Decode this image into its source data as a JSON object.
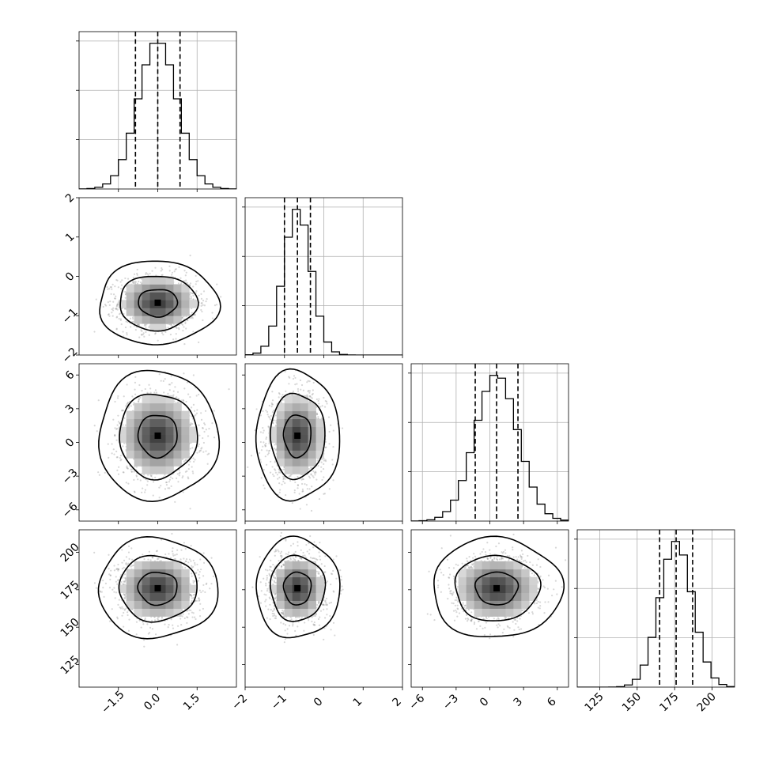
{
  "chart_data": {
    "type": "corner",
    "params": [
      {
        "range": [
          -3,
          3
        ],
        "ticks": [
          -1.5,
          0.0,
          1.5
        ],
        "tick_labels": [
          "−1.5",
          "0.0",
          "1.5"
        ],
        "mean": 0.0,
        "sd": 0.75,
        "quantiles": [
          -0.85,
          0.0,
          0.85
        ]
      },
      {
        "range": [
          -2,
          2
        ],
        "ticks": [
          -2,
          -1,
          0,
          1,
          2
        ],
        "tick_labels": [
          "−2",
          "−1",
          "0",
          "1",
          "2"
        ],
        "mean": -0.67,
        "sd": 0.35,
        "quantiles": [
          -1.0,
          -0.67,
          -0.34
        ]
      },
      {
        "range": [
          -7,
          7
        ],
        "ticks": [
          -6,
          -3,
          0,
          3,
          6
        ],
        "tick_labels": [
          "−6",
          "−3",
          "0",
          "3",
          "6"
        ],
        "mean": 0.6,
        "sd": 1.9,
        "quantiles": [
          -1.3,
          0.6,
          2.5
        ]
      },
      {
        "range": [
          110,
          215
        ],
        "ticks": [
          125,
          150,
          175,
          200
        ],
        "tick_labels": [
          "125",
          "150",
          "175",
          "200"
        ],
        "mean": 176,
        "sd": 11,
        "quantiles": [
          165,
          176,
          187
        ]
      }
    ],
    "contour_levels": [
      0.39,
      0.86,
      0.99
    ],
    "grid": true,
    "quantile_line_style": "dashed"
  }
}
